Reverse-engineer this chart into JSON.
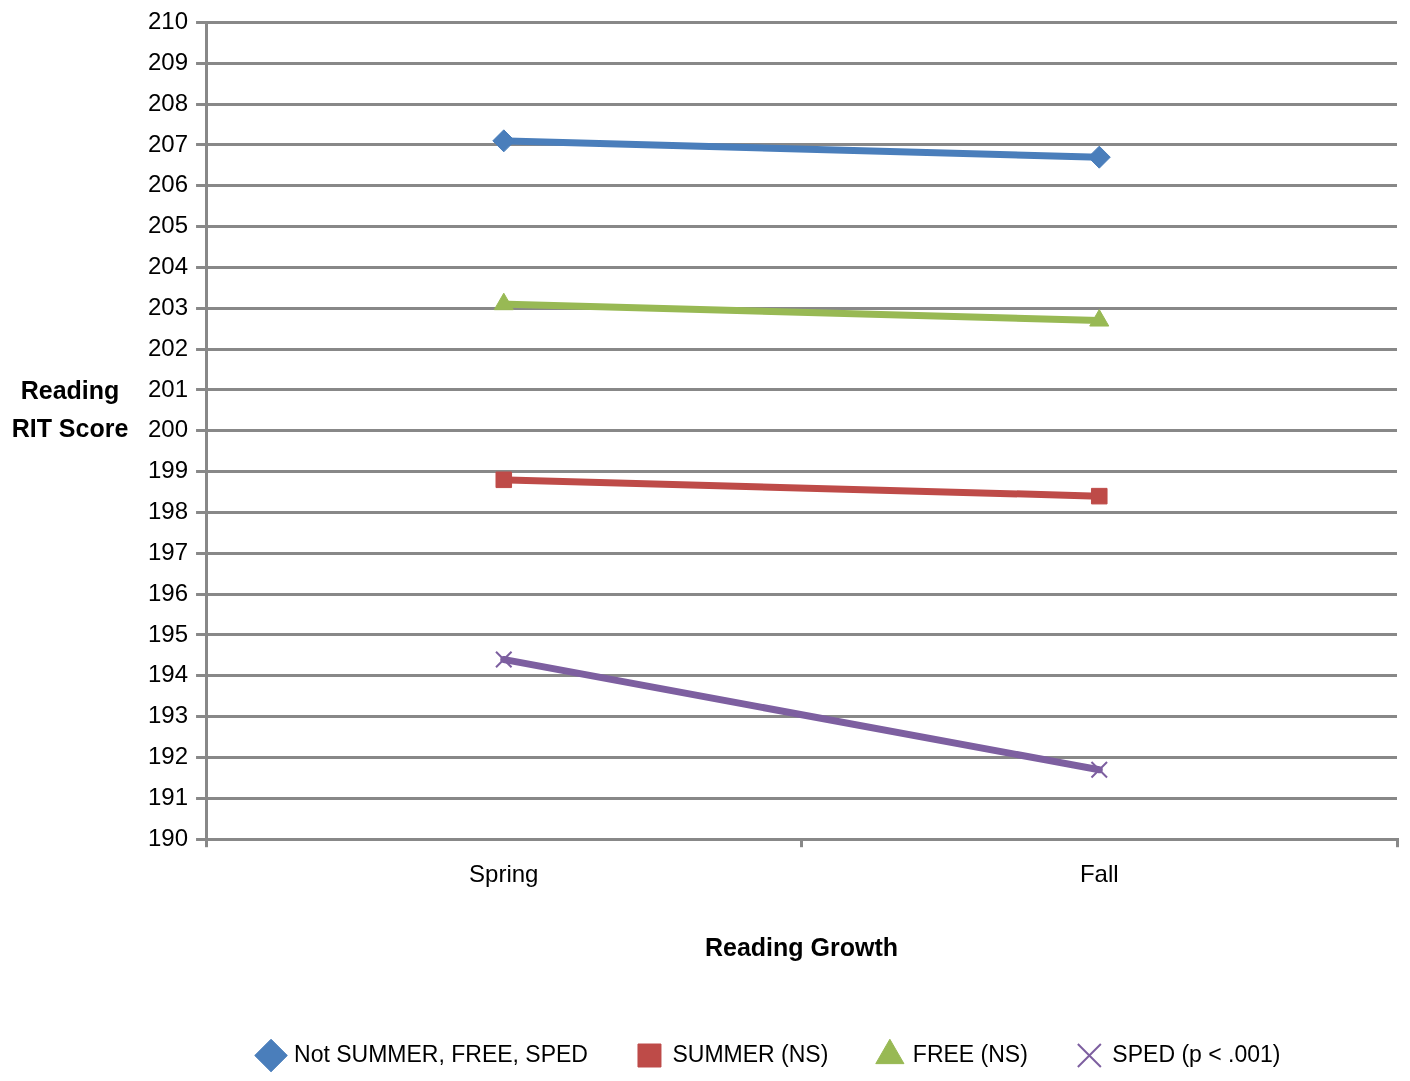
{
  "chart_data": {
    "type": "line",
    "xlabel": "Reading Growth",
    "ylabel": "Reading RIT Score",
    "categories": [
      "Spring",
      "Fall"
    ],
    "series": [
      {
        "name": "Not SUMMER, FREE, SPED",
        "color": "#4a7ebb",
        "marker": "diamond",
        "values": [
          207.1,
          206.7
        ]
      },
      {
        "name": "SUMMER (NS)",
        "color": "#be4b48",
        "marker": "square",
        "values": [
          198.8,
          198.4
        ]
      },
      {
        "name": "FREE (NS)",
        "color": "#98b954",
        "marker": "triangle",
        "values": [
          203.1,
          202.7
        ]
      },
      {
        "name": "SPED (p < .001)",
        "color": "#7d5fa0",
        "marker": "cross",
        "values": [
          194.4,
          191.7
        ]
      }
    ],
    "ylim": [
      190,
      210
    ],
    "yticks": [
      190,
      191,
      192,
      193,
      194,
      195,
      196,
      197,
      198,
      199,
      200,
      201,
      202,
      203,
      204,
      205,
      206,
      207,
      208,
      209,
      210
    ],
    "grid": "y",
    "legend": "bottom"
  }
}
